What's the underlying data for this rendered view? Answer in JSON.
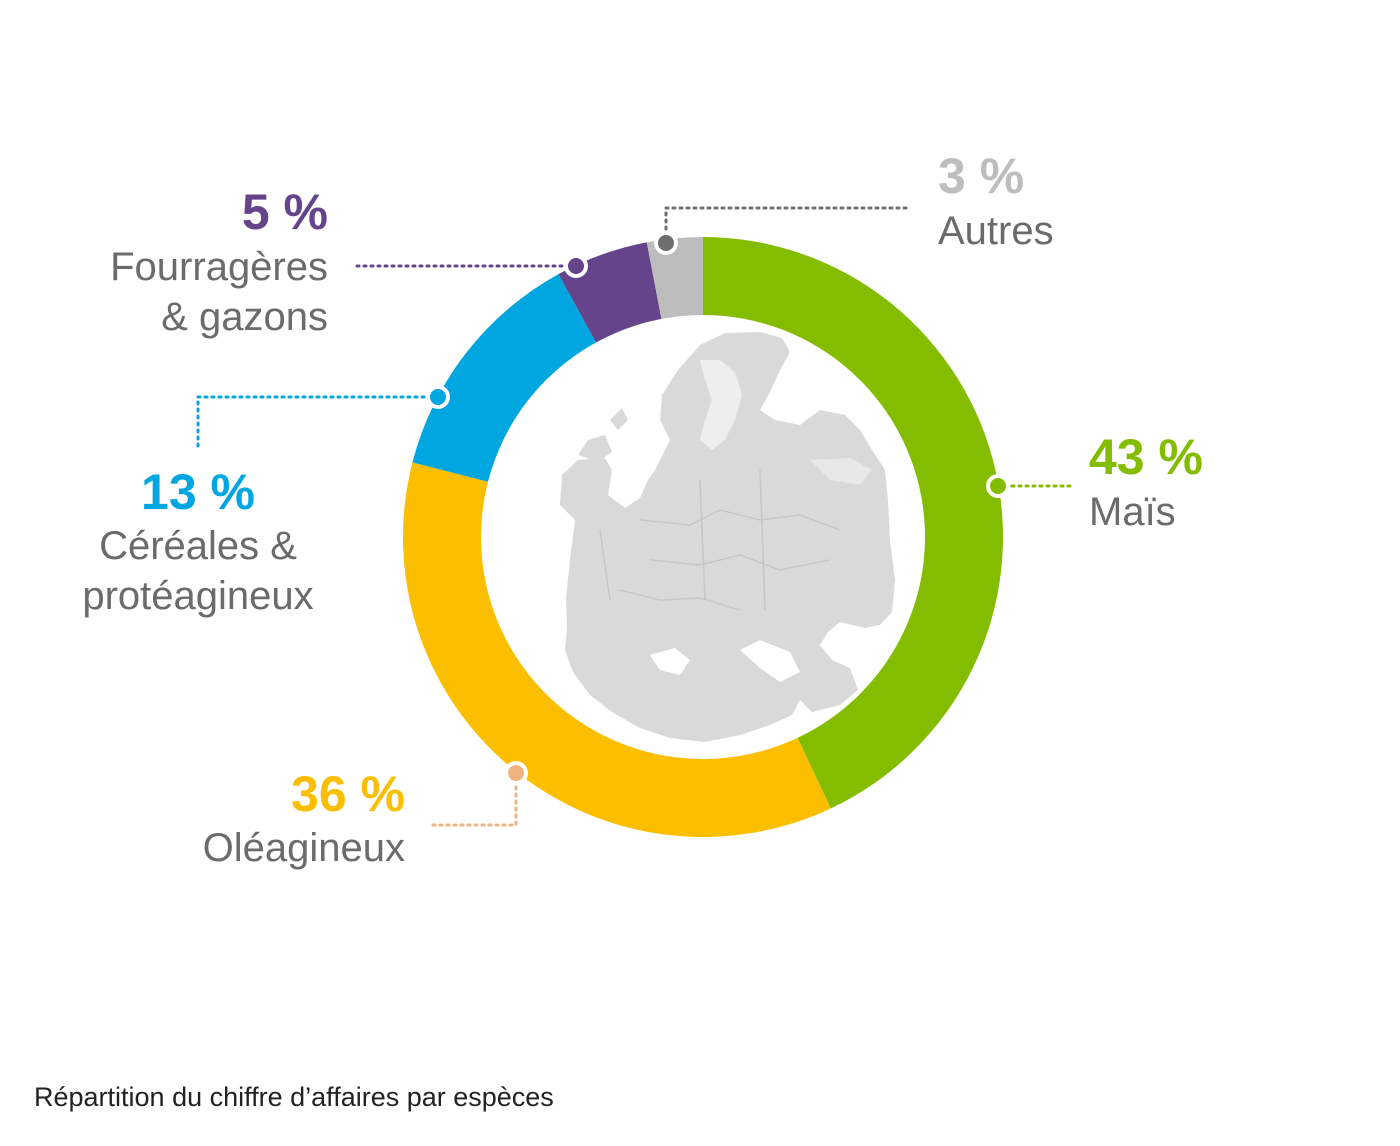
{
  "chart_data": {
    "type": "pie",
    "caption": "Répartition du chiffre d’affaires par espèces",
    "series": [
      {
        "pct_label": "43 %",
        "label_lines": [
          "Maïs"
        ],
        "value": 43,
        "color": "#84BD00",
        "dot_color": "#84BD00"
      },
      {
        "pct_label": "36 %",
        "label_lines": [
          "Oléagineux"
        ],
        "value": 36,
        "color": "#FBBE00",
        "dot_color": "#F2B27E"
      },
      {
        "pct_label": "13 %",
        "label_lines": [
          "Céréales &",
          "protéagineux"
        ],
        "value": 13,
        "color": "#00A6E0",
        "dot_color": "#00A6E0"
      },
      {
        "pct_label": "5 %",
        "label_lines": [
          "Fourragères",
          "& gazons"
        ],
        "value": 5,
        "color": "#65448B",
        "dot_color": "#65448B"
      },
      {
        "pct_label": "3 %",
        "label_lines": [
          "Autres"
        ],
        "value": 3,
        "color": "#BDBDBD",
        "dot_color": "#6E6E6E"
      }
    ],
    "center_image": "europe-map",
    "label_text_color": "#6b6b6b",
    "map_color": "#D9D9D9"
  }
}
